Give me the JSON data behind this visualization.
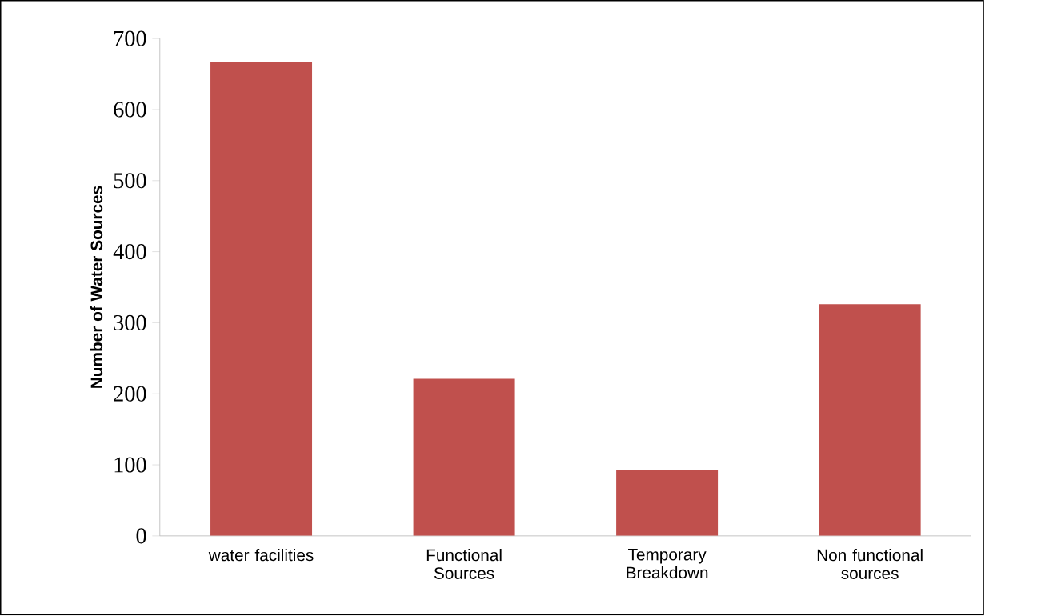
{
  "chart_data": {
    "type": "bar",
    "ylabel": "Number of Water Sources",
    "categories": [
      "water facilities",
      "Functional Sources",
      "Temporary Breakdown",
      "Non functional sources"
    ],
    "values": [
      667,
      221,
      93,
      326
    ],
    "color": "#c0504d",
    "ylim": [
      0,
      700
    ],
    "yticks": [
      0,
      100,
      200,
      300,
      400,
      500,
      600,
      700
    ],
    "grid": false
  }
}
